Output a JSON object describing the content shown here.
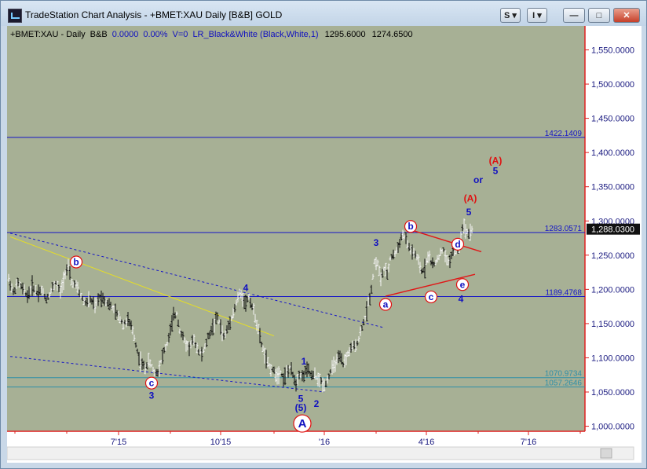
{
  "window": {
    "title": "TradeStation Chart Analysis - +BMET:XAU Daily [B&B] GOLD",
    "buttons": {
      "style_label": "S",
      "indicator_label": "I",
      "minimize_label": "—",
      "maximize_label": "□",
      "close_label": "✕"
    }
  },
  "header": {
    "symbol": "+BMET:XAU - Daily",
    "mode": "B&B",
    "change": "0.0000",
    "change_pct": "0.00%",
    "volume": "V=0",
    "indicator": "LR_Black&White (Black,White,1)",
    "high": "1295.6000",
    "low": "1274.6500"
  },
  "colors": {
    "background": "#a7b095",
    "axis_line": "#e02020",
    "blue_line": "#1414c8",
    "teal_line": "#2f8fa8",
    "trend_line": "#e8e020",
    "red_line": "#e01818",
    "wave_blue": "#1010c0",
    "wave_red": "#e01010"
  },
  "chart_data": {
    "type": "candlestick",
    "title": "+BMET:XAU - Daily",
    "x_axis_labels": [
      "7'15",
      "10'15",
      "'16",
      "4'16",
      "7'16"
    ],
    "y_axis_ticks": [
      "1,550.0000",
      "1,500.0000",
      "1,450.0000",
      "1,400.0000",
      "1,350.0000",
      "1,300.0000",
      "1,250.0000",
      "1,200.0000",
      "1,150.0000",
      "1,100.0000",
      "1,050.0000",
      "1,000.0000"
    ],
    "ylim": [
      960,
      1580
    ],
    "last_price": "1,288.0300",
    "price_lines": [
      {
        "label": "1422.1409",
        "value": 1422.1409,
        "color": "blue"
      },
      {
        "label": "1283.0571",
        "value": 1283.0571,
        "color": "blue"
      },
      {
        "label": "1189.4768",
        "value": 1189.4768,
        "color": "blue"
      },
      {
        "label": "1070.9734",
        "value": 1070.9734,
        "color": "teal"
      },
      {
        "label": "1057.2646",
        "value": 1057.2646,
        "color": "teal"
      }
    ],
    "series_path": [
      [
        0,
        1215
      ],
      [
        6,
        1195
      ],
      [
        12,
        1210
      ],
      [
        18,
        1200
      ],
      [
        24,
        1190
      ],
      [
        30,
        1205
      ],
      [
        36,
        1195
      ],
      [
        42,
        1200
      ],
      [
        48,
        1185
      ],
      [
        54,
        1198
      ],
      [
        60,
        1210
      ],
      [
        66,
        1195
      ],
      [
        72,
        1225
      ],
      [
        76,
        1232
      ],
      [
        80,
        1210
      ],
      [
        86,
        1205
      ],
      [
        92,
        1190
      ],
      [
        98,
        1180
      ],
      [
        104,
        1185
      ],
      [
        110,
        1175
      ],
      [
        116,
        1190
      ],
      [
        122,
        1185
      ],
      [
        128,
        1178
      ],
      [
        134,
        1170
      ],
      [
        140,
        1160
      ],
      [
        146,
        1150
      ],
      [
        152,
        1155
      ],
      [
        158,
        1140
      ],
      [
        162,
        1120
      ],
      [
        166,
        1100
      ],
      [
        170,
        1090
      ],
      [
        174,
        1085
      ],
      [
        178,
        1095
      ],
      [
        182,
        1088
      ],
      [
        186,
        1078
      ],
      [
        190,
        1080
      ],
      [
        194,
        1095
      ],
      [
        198,
        1110
      ],
      [
        202,
        1120
      ],
      [
        206,
        1140
      ],
      [
        210,
        1160
      ],
      [
        214,
        1165
      ],
      [
        218,
        1140
      ],
      [
        222,
        1130
      ],
      [
        226,
        1120
      ],
      [
        230,
        1115
      ],
      [
        234,
        1125
      ],
      [
        238,
        1120
      ],
      [
        242,
        1110
      ],
      [
        246,
        1105
      ],
      [
        250,
        1115
      ],
      [
        254,
        1130
      ],
      [
        258,
        1140
      ],
      [
        262,
        1150
      ],
      [
        266,
        1160
      ],
      [
        270,
        1145
      ],
      [
        274,
        1130
      ],
      [
        278,
        1140
      ],
      [
        282,
        1155
      ],
      [
        286,
        1165
      ],
      [
        290,
        1180
      ],
      [
        294,
        1195
      ],
      [
        298,
        1188
      ],
      [
        302,
        1180
      ],
      [
        306,
        1190
      ],
      [
        310,
        1175
      ],
      [
        314,
        1160
      ],
      [
        318,
        1140
      ],
      [
        322,
        1120
      ],
      [
        326,
        1105
      ],
      [
        330,
        1090
      ],
      [
        334,
        1085
      ],
      [
        338,
        1080
      ],
      [
        342,
        1075
      ],
      [
        346,
        1080
      ],
      [
        350,
        1070
      ],
      [
        354,
        1078
      ],
      [
        358,
        1085
      ],
      [
        362,
        1075
      ],
      [
        366,
        1062
      ],
      [
        370,
        1078
      ],
      [
        374,
        1072
      ],
      [
        378,
        1080
      ],
      [
        382,
        1082
      ],
      [
        386,
        1072
      ],
      [
        390,
        1075
      ],
      [
        394,
        1068
      ],
      [
        398,
        1065
      ],
      [
        402,
        1060
      ],
      [
        406,
        1068
      ],
      [
        410,
        1080
      ],
      [
        414,
        1088
      ],
      [
        418,
        1095
      ],
      [
        422,
        1100
      ],
      [
        426,
        1090
      ],
      [
        430,
        1100
      ],
      [
        434,
        1110
      ],
      [
        438,
        1115
      ],
      [
        442,
        1118
      ],
      [
        446,
        1128
      ],
      [
        450,
        1145
      ],
      [
        454,
        1158
      ],
      [
        458,
        1180
      ],
      [
        462,
        1200
      ],
      [
        466,
        1240
      ],
      [
        470,
        1238
      ],
      [
        474,
        1215
      ],
      [
        478,
        1230
      ],
      [
        482,
        1220
      ],
      [
        486,
        1245
      ],
      [
        490,
        1250
      ],
      [
        494,
        1255
      ],
      [
        498,
        1270
      ],
      [
        502,
        1280
      ],
      [
        506,
        1272
      ],
      [
        510,
        1260
      ],
      [
        514,
        1255
      ],
      [
        518,
        1250
      ],
      [
        522,
        1240
      ],
      [
        526,
        1225
      ],
      [
        530,
        1232
      ],
      [
        534,
        1250
      ],
      [
        538,
        1240
      ],
      [
        542,
        1235
      ],
      [
        546,
        1245
      ],
      [
        550,
        1252
      ],
      [
        554,
        1258
      ],
      [
        558,
        1240
      ],
      [
        562,
        1242
      ],
      [
        566,
        1258
      ],
      [
        570,
        1255
      ],
      [
        574,
        1262
      ],
      [
        578,
        1292
      ],
      [
        582,
        1288
      ],
      [
        586,
        1282
      ],
      [
        590,
        1288
      ]
    ],
    "annotations": [
      {
        "text": "b",
        "circled": true,
        "color": "blue",
        "x": 86,
        "y": 1240
      },
      {
        "text": "c",
        "circled": true,
        "color": "blue",
        "x": 182,
        "y": 1063
      },
      {
        "text": "3",
        "circled": false,
        "color": "blue",
        "x": 182,
        "y": 1045
      },
      {
        "text": "4",
        "circled": false,
        "color": "blue",
        "x": 302,
        "y": 1202
      },
      {
        "text": "1",
        "circled": false,
        "color": "blue",
        "x": 376,
        "y": 1095
      },
      {
        "text": "5",
        "circled": false,
        "color": "blue",
        "x": 372,
        "y": 1040
      },
      {
        "text": "(5)",
        "circled": false,
        "color": "blue",
        "x": 372,
        "y": 1027
      },
      {
        "text": "2",
        "circled": false,
        "color": "blue",
        "x": 392,
        "y": 1033
      },
      {
        "text": "A",
        "circled": true,
        "color": "blue",
        "x": 374,
        "y": 1004
      },
      {
        "text": "3",
        "circled": false,
        "color": "blue",
        "x": 468,
        "y": 1268
      },
      {
        "text": "a",
        "circled": true,
        "color": "blue",
        "x": 480,
        "y": 1178
      },
      {
        "text": "b",
        "circled": true,
        "color": "blue",
        "x": 512,
        "y": 1292
      },
      {
        "text": "c",
        "circled": true,
        "color": "blue",
        "x": 538,
        "y": 1189
      },
      {
        "text": "d",
        "circled": true,
        "color": "blue",
        "x": 572,
        "y": 1266
      },
      {
        "text": "e",
        "circled": true,
        "color": "blue",
        "x": 578,
        "y": 1207
      },
      {
        "text": "4",
        "circled": false,
        "color": "blue",
        "x": 576,
        "y": 1186
      },
      {
        "text": "5",
        "circled": false,
        "color": "blue",
        "x": 586,
        "y": 1313
      },
      {
        "text": "(A)",
        "circled": false,
        "color": "red",
        "x": 588,
        "y": 1333
      },
      {
        "text": "or",
        "circled": false,
        "color": "blue",
        "x": 598,
        "y": 1360
      },
      {
        "text": "5",
        "circled": false,
        "color": "blue",
        "x": 620,
        "y": 1373
      },
      {
        "text": "(A)",
        "circled": false,
        "color": "red",
        "x": 620,
        "y": 1388
      }
    ],
    "trend_lines": [
      {
        "color": "yellow",
        "style": "solid",
        "points": [
          [
            2,
            1277
          ],
          [
            338,
            1132
          ]
        ]
      },
      {
        "color": "blue",
        "style": "dashed",
        "points": [
          [
            2,
            1282
          ],
          [
            478,
            1144
          ]
        ]
      },
      {
        "color": "blue",
        "style": "dashed",
        "points": [
          [
            2,
            1102
          ],
          [
            402,
            1050
          ]
        ]
      },
      {
        "color": "red",
        "style": "solid",
        "points": [
          [
            512,
            1287
          ],
          [
            602,
            1255
          ]
        ]
      },
      {
        "color": "red",
        "style": "solid",
        "points": [
          [
            480,
            1190
          ],
          [
            594,
            1222
          ]
        ]
      }
    ]
  }
}
